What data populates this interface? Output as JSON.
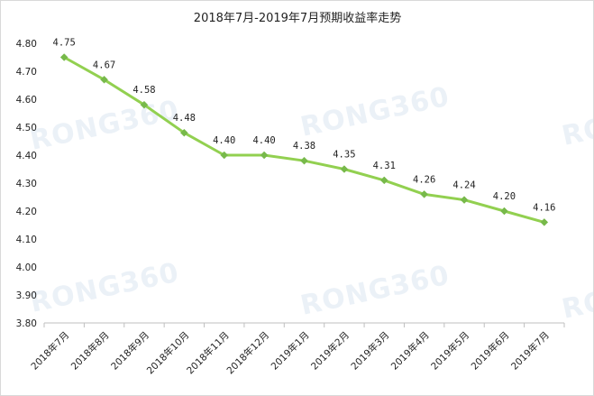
{
  "chart_data": {
    "type": "line",
    "title": "2018年7月-2019年7月预期收益率走势",
    "xlabel": "",
    "ylabel": "",
    "categories": [
      "2018年7月",
      "2018年8月",
      "2018年9月",
      "2018年10月",
      "2018年11月",
      "2018年12月",
      "2019年1月",
      "2019年2月",
      "2019年3月",
      "2019年4月",
      "2019年5月",
      "2019年6月",
      "2019年7月"
    ],
    "values": [
      4.75,
      4.67,
      4.58,
      4.48,
      4.4,
      4.4,
      4.38,
      4.35,
      4.31,
      4.26,
      4.24,
      4.2,
      4.16
    ],
    "value_labels": [
      "4.75",
      "4.67",
      "4.58",
      "4.48",
      "4.40",
      "4.40",
      "4.38",
      "4.35",
      "4.31",
      "4.26",
      "4.24",
      "4.20",
      "4.16"
    ],
    "ylim": [
      3.8,
      4.8
    ],
    "yticks": [
      "3.80",
      "3.90",
      "4.00",
      "4.10",
      "4.20",
      "4.30",
      "4.40",
      "4.50",
      "4.60",
      "4.70",
      "4.80"
    ],
    "grid": false,
    "legend": "none",
    "line_color": "#92d050",
    "marker_color": "#77b94a",
    "watermark": "RONG360"
  }
}
